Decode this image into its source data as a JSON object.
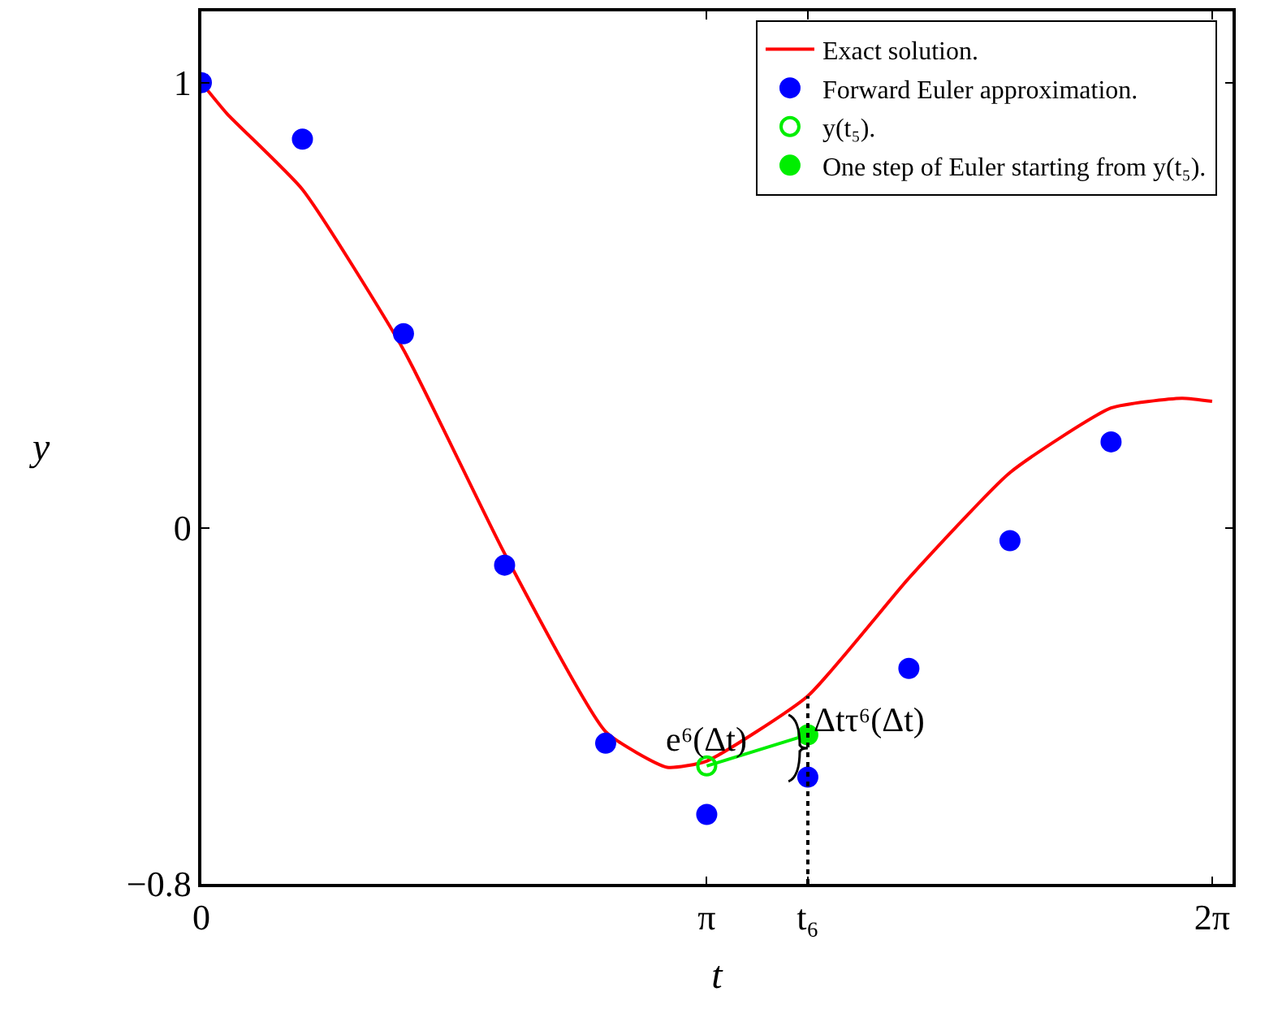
{
  "chart_data": {
    "type": "line",
    "xlabel": "t",
    "ylabel": "y",
    "xlim": [
      0,
      6.41
    ],
    "ylim": [
      -0.8,
      1.16
    ],
    "xticks": [
      0,
      {
        "value": 3.1416,
        "label": "π"
      },
      {
        "value": 3.7699,
        "label": "t₆"
      },
      {
        "value": 6.2832,
        "label": "2π"
      }
    ],
    "yticks": [
      {
        "value": -0.8,
        "label": "−0.8"
      },
      0,
      1
    ],
    "legend": "top right",
    "series": [
      {
        "name": "Exact solution.",
        "color": "#ff0000",
        "marker": "none",
        "x": [
          0,
          0.16,
          0.6283,
          1.2566,
          1.885,
          2.5133,
          2.895,
          3.1416,
          3.7699,
          4.3982,
          5.0265,
          5.6549,
          6.0952,
          6.2832
        ],
        "values": [
          1,
          0.93,
          0.76,
          0.4,
          -0.058,
          -0.458,
          -0.538,
          -0.524,
          -0.378,
          -0.113,
          0.124,
          0.269,
          0.291,
          0.284
        ]
      },
      {
        "name": "Forward Euler approximation.",
        "type": "scatter",
        "color": "#0000ff",
        "marker": "circle",
        "x": [
          0,
          0.6283,
          1.2566,
          1.885,
          2.5133,
          3.1416,
          3.7699,
          4.3982,
          5.0265,
          5.6549
        ],
        "values": [
          1,
          0.873,
          0.436,
          -0.084,
          -0.484,
          -0.644,
          -0.56,
          -0.316,
          -0.029,
          0.193
        ]
      },
      {
        "color": "#00ee00",
        "marker": "none",
        "x": [
          3.1416,
          3.7699
        ],
        "values": [
          -0.535,
          -0.465
        ]
      },
      {
        "name": "y(t₅).",
        "type": "scatter",
        "color": "#00ee00",
        "marker": "circle-open",
        "x": [
          3.1416
        ],
        "values": [
          -0.535
        ]
      },
      {
        "name": "One step of Euler starting from y(t₅).",
        "type": "scatter",
        "color": "#00ee00",
        "marker": "circle",
        "x": [
          3.7699
        ],
        "values": [
          -0.465
        ]
      }
    ],
    "ref_lines": [
      {
        "axis": "x",
        "value": 3.7699,
        "line_style": "dotted",
        "color": "#000000"
      }
    ],
    "annotations": [
      {
        "text": "e⁶(Δt)",
        "x": 3.1416,
        "y": -0.535
      },
      {
        "text": "Δtτ⁶(Δt)",
        "x": 3.7699,
        "y": -0.43
      }
    ]
  }
}
